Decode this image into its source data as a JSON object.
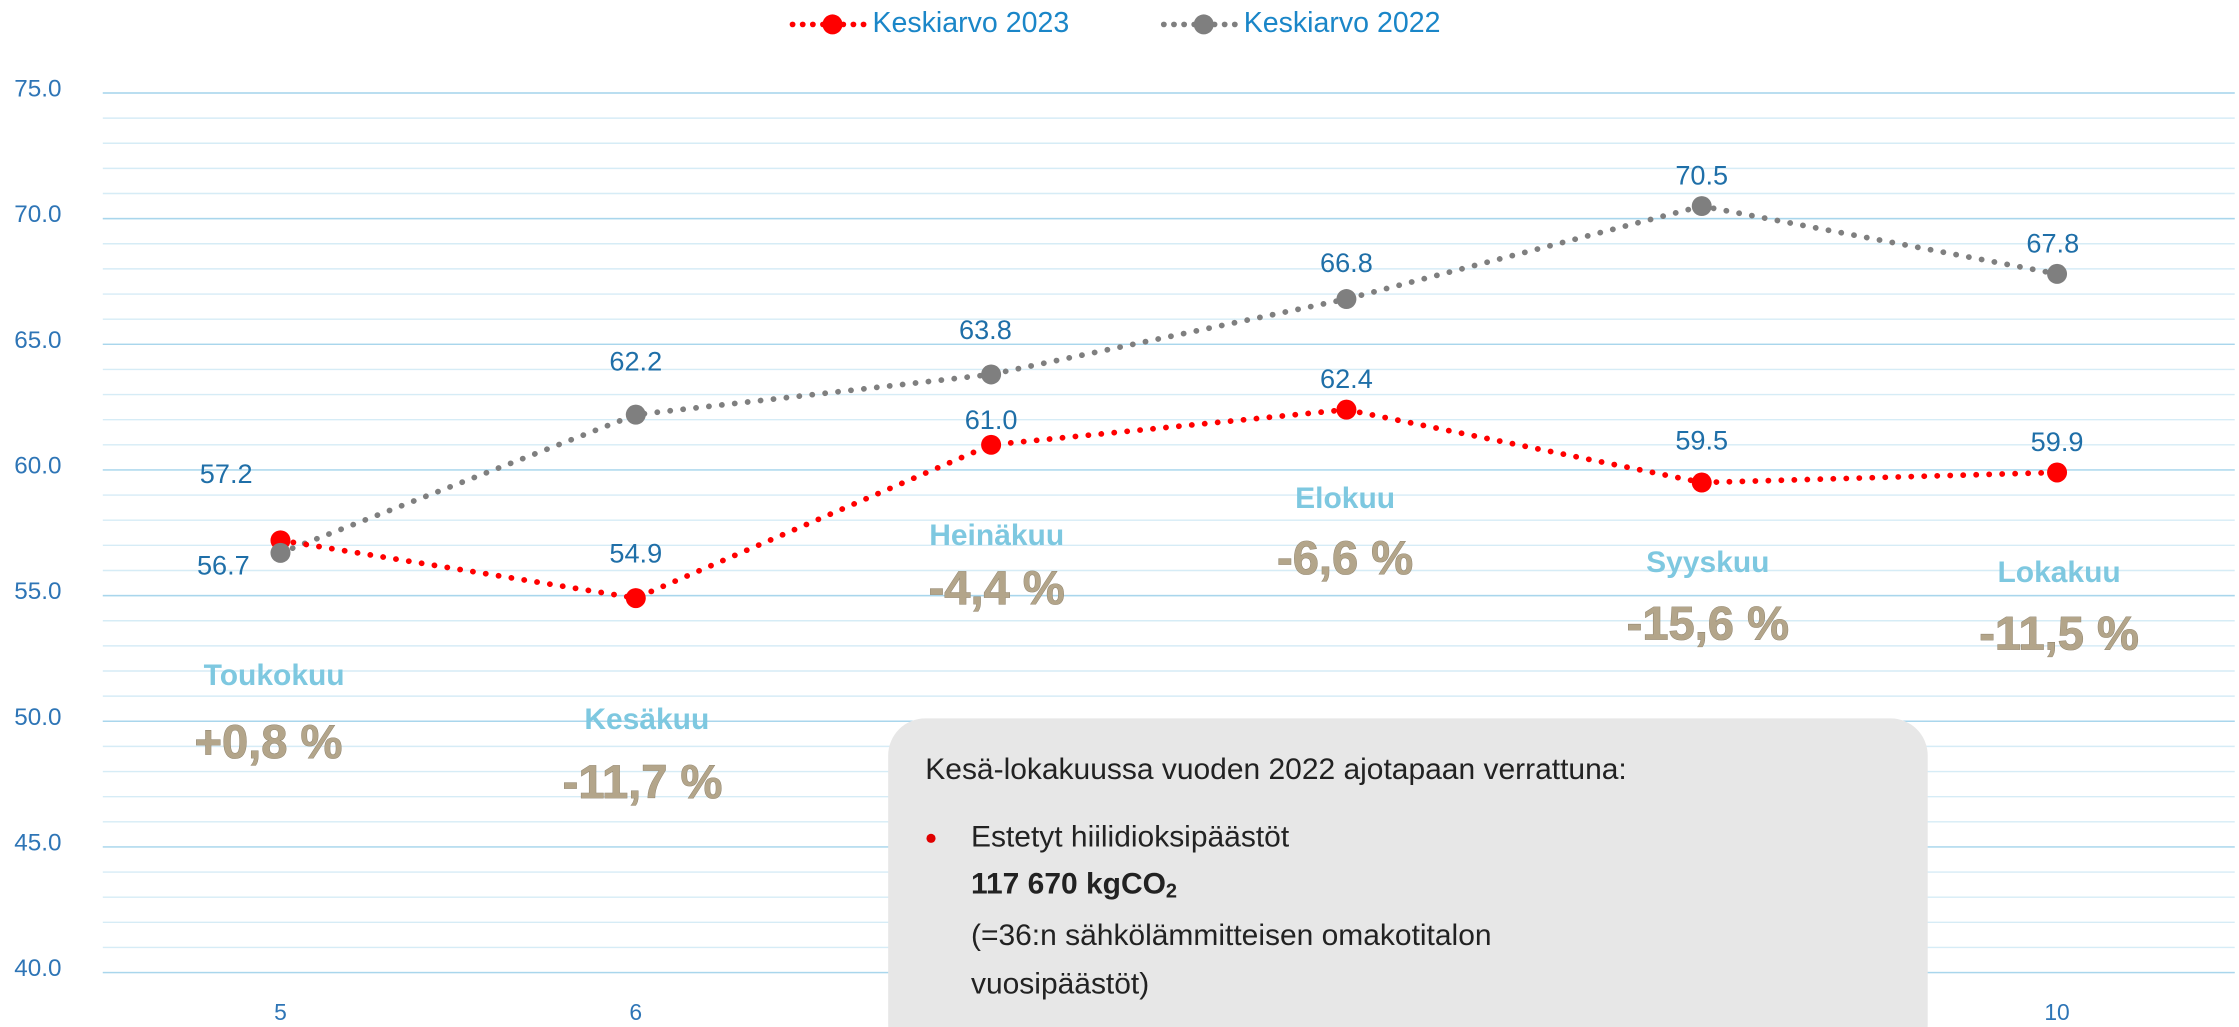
{
  "chart_data": {
    "type": "line",
    "x": [
      5,
      6,
      7,
      8,
      9,
      10
    ],
    "xlim": [
      4.5,
      10.5
    ],
    "ylim": [
      40,
      75
    ],
    "yticks": [
      {
        "value": 40,
        "label": "40.0"
      },
      {
        "value": 45,
        "label": "45.0"
      },
      {
        "value": 50,
        "label": "50.0"
      },
      {
        "value": 55,
        "label": "55.0"
      },
      {
        "value": 60,
        "label": "60.0"
      },
      {
        "value": 65,
        "label": "65.0"
      },
      {
        "value": 70,
        "label": "70.0"
      },
      {
        "value": 75,
        "label": "75.0"
      }
    ],
    "minor_grid_step": 1,
    "grid": true,
    "legend": "top",
    "series": [
      {
        "name": "Keskiarvo 2023",
        "color": "#ff0000",
        "values": [
          57.2,
          54.9,
          61.0,
          62.4,
          59.5,
          59.9
        ],
        "value_labels": [
          "57.2",
          "54.9",
          "61.0",
          "62.4",
          "59.5",
          "59.9"
        ]
      },
      {
        "name": "Keskiarvo 2022",
        "color": "#7f7f7f",
        "values": [
          56.7,
          62.2,
          63.8,
          66.8,
          70.5,
          67.8
        ],
        "value_labels": [
          "56.7",
          "62.2",
          "63.8",
          "66.8",
          "70.5",
          "67.8"
        ]
      }
    ],
    "annotations": [
      {
        "month": "Toukokuu",
        "change": "+0,8 %"
      },
      {
        "month": "Kesäkuu",
        "change": "-11,7 %"
      },
      {
        "month": "Heinäkuu",
        "change": "-4,4 %"
      },
      {
        "month": "Elokuu",
        "change": "-6,6 %"
      },
      {
        "month": "Syyskuu",
        "change": "-15,6 %"
      },
      {
        "month": "Lokakuu",
        "change": "-11,5 %"
      }
    ]
  },
  "note": {
    "heading": "Kesä-lokakuussa vuoden 2022 ajotapaan verrattuna:",
    "bullet": "Estetyt hiilidioksipäästöt",
    "amount": "117 670 kgCO",
    "amount_sub": "2",
    "lines": [
      "(=36:n sähkölämmitteisen omakotitalon",
      "vuosipäästöt)"
    ]
  }
}
